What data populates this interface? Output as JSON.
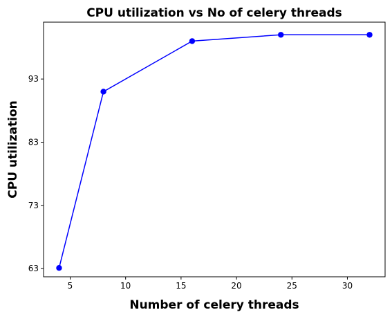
{
  "chart_data": {
    "type": "line",
    "title": "CPU utilization vs No of celery threads",
    "xlabel": "Number of celery threads",
    "ylabel": "CPU utilization",
    "x": [
      4,
      8,
      16,
      24,
      32
    ],
    "series": [
      {
        "values": [
          63.1,
          91,
          99,
          100,
          100
        ],
        "color": "#0000ff",
        "marker": "circle"
      }
    ],
    "xlim": [
      2.6,
      33.4
    ],
    "ylim": [
      61.7,
      102.0
    ],
    "xticks": [
      5,
      10,
      15,
      20,
      25,
      30
    ],
    "yticks": [
      63,
      73,
      83,
      93
    ],
    "grid": false
  }
}
